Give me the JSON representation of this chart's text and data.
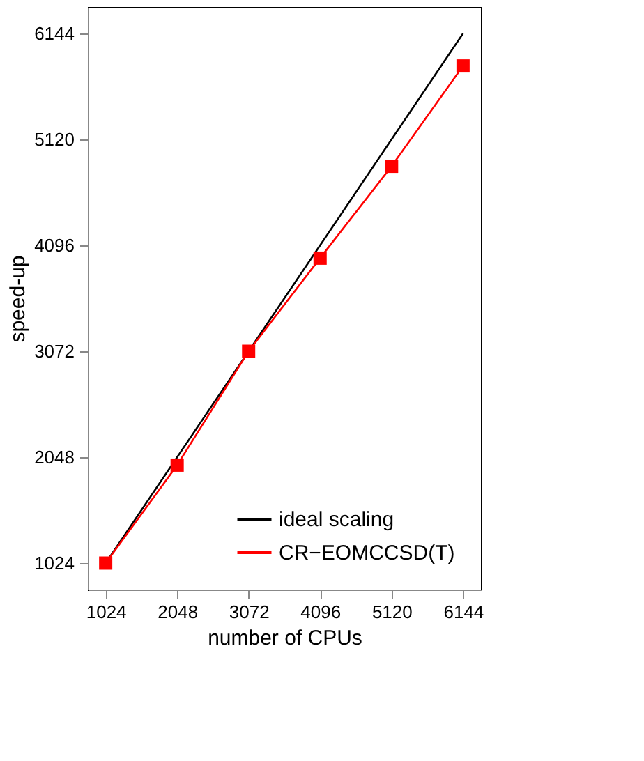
{
  "chart_data": {
    "type": "line",
    "xlabel": "number of CPUs",
    "ylabel": "speed-up",
    "x": [
      1024,
      2048,
      3072,
      4096,
      5120,
      6144
    ],
    "series": [
      {
        "name": "ideal scaling",
        "color": "#000000",
        "values": [
          1024,
          2048,
          3072,
          4096,
          5120,
          6144
        ],
        "marker": "none"
      },
      {
        "name": "CR−EOMCCSD(T)",
        "color": "#ff0000",
        "values": [
          1024,
          1971,
          3072,
          3972,
          4860,
          5830
        ],
        "marker": "square"
      }
    ],
    "xlim": [
      768,
      6400
    ],
    "ylim": [
      768,
      6400
    ],
    "xticks": [
      1024,
      2048,
      3072,
      4096,
      5120,
      6144
    ],
    "yticks": [
      1024,
      2048,
      3072,
      4096,
      5120,
      6144
    ],
    "grid": false,
    "legend": "bottom right",
    "line_style": "solid"
  }
}
